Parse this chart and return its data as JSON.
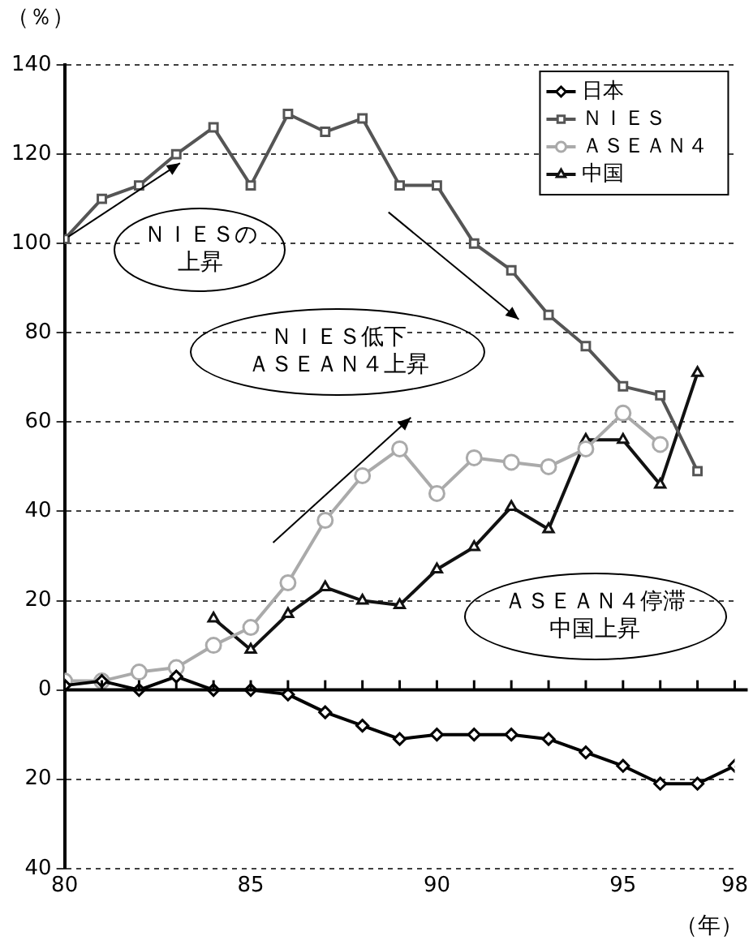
{
  "chart_data": {
    "type": "line",
    "ylabel": "（％）",
    "xlabel": "（年）",
    "x": [
      80,
      81,
      82,
      83,
      84,
      85,
      86,
      87,
      88,
      89,
      90,
      91,
      92,
      93,
      94,
      95,
      96,
      97,
      98
    ],
    "series": [
      {
        "name": "日本",
        "color": "#000000",
        "marker": "diamond",
        "values": [
          1,
          2,
          0,
          3,
          0,
          0,
          -1,
          -5,
          -8,
          -11,
          -10,
          -10,
          -10,
          -11,
          -14,
          -17,
          -21,
          -21,
          -17
        ]
      },
      {
        "name": "ＮＩＥＳ",
        "color": "#555555",
        "marker": "square",
        "values": [
          101,
          110,
          113,
          120,
          126,
          113,
          129,
          125,
          128,
          113,
          113,
          100,
          94,
          84,
          77,
          68,
          66,
          49,
          null
        ]
      },
      {
        "name": "ＡＳＥＡＮ４",
        "color": "#aaaaaa",
        "marker": "circle",
        "values": [
          2,
          2,
          4,
          5,
          10,
          14,
          24,
          38,
          48,
          54,
          44,
          52,
          51,
          50,
          54,
          62,
          55,
          null,
          null
        ]
      },
      {
        "name": "中国",
        "color": "#111111",
        "marker": "triangle",
        "values": [
          null,
          null,
          null,
          null,
          16,
          9,
          17,
          23,
          20,
          19,
          27,
          32,
          41,
          36,
          56,
          56,
          46,
          71,
          null
        ]
      }
    ],
    "xlim": [
      80,
      98
    ],
    "xticks": [
      80,
      {
        "value": 81,
        "label": null
      },
      {
        "value": 82,
        "label": null
      },
      {
        "value": 83,
        "label": null
      },
      {
        "value": 84,
        "label": null
      },
      85,
      {
        "value": 86,
        "label": null
      },
      {
        "value": 87,
        "label": null
      },
      {
        "value": 88,
        "label": null
      },
      {
        "value": 89,
        "label": null
      },
      90,
      {
        "value": 91,
        "label": null
      },
      {
        "value": 92,
        "label": null
      },
      {
        "value": 93,
        "label": null
      },
      {
        "value": 94,
        "label": null
      },
      95,
      {
        "value": 96,
        "label": null
      },
      {
        "value": 97,
        "label": null
      },
      98
    ],
    "ylim": [
      -40,
      140
    ],
    "yticks": [
      {
        "value": -40,
        "label": "40"
      },
      {
        "value": -20,
        "label": "20"
      },
      0,
      20,
      40,
      60,
      80,
      100,
      120,
      140
    ],
    "grid": "y",
    "legend": "top right",
    "line_style": "solid",
    "annotations": [
      "ＮＩＥＳの上昇",
      "ＮＩＥＳ低下",
      "ＡＳＥＡＮ４上昇",
      "ＡＳＥＡＮ４停滞",
      "中国上昇"
    ]
  }
}
